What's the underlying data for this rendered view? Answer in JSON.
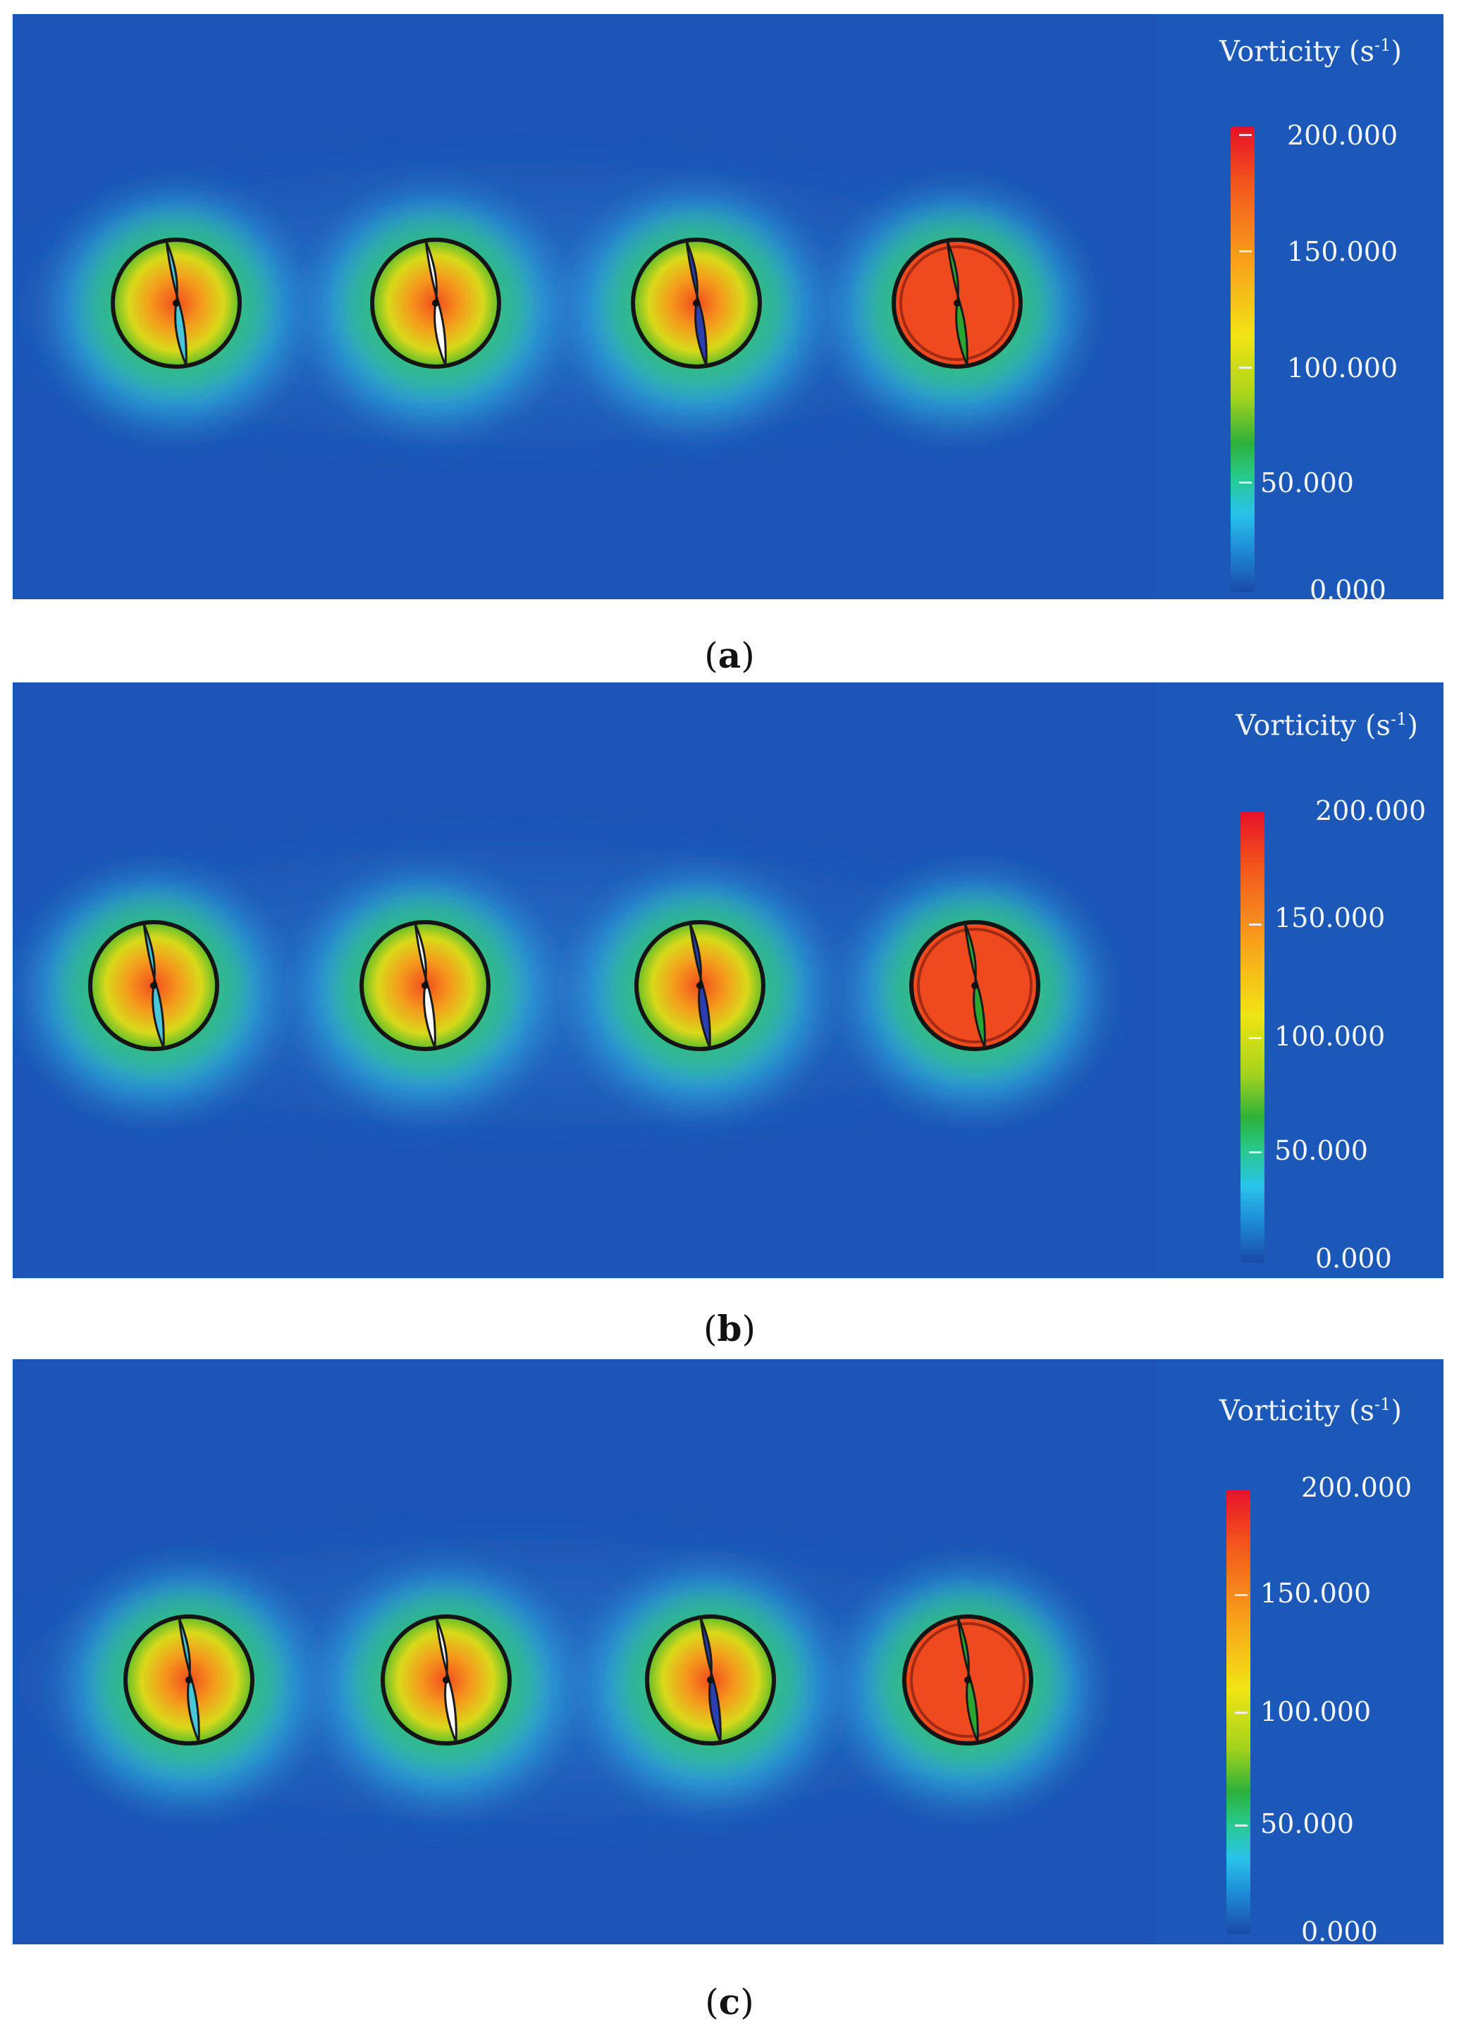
{
  "colorbar": {
    "title": "Vorticity (s",
    "title_sup": "-1",
    "title_close": ")",
    "ticks": [
      "200.000",
      "150.000",
      "100.000",
      "50.000",
      "0.000"
    ],
    "colors": [
      "#e8102a",
      "#f8a51a",
      "#f1e414",
      "#2cb13b",
      "#29c3ea",
      "#1a4aa8"
    ]
  },
  "background_color": "#1c55b5",
  "panels": [
    {
      "label": "a",
      "blade_colors": [
        "#49c7d8",
        "#ffffff",
        "#2b3fb0",
        "#2aa632"
      ]
    },
    {
      "label": "b",
      "blade_colors": [
        "#49c7d8",
        "#ffffff",
        "#2b3fb0",
        "#2aa632"
      ]
    },
    {
      "label": "c",
      "blade_colors": [
        "#49c7d8",
        "#ffffff",
        "#2b3fb0",
        "#2aa632"
      ]
    }
  ]
}
